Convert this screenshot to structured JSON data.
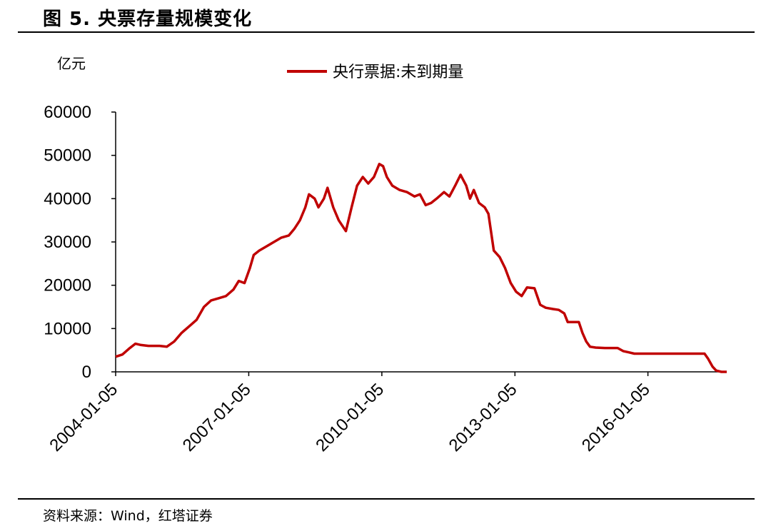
{
  "figure": {
    "title": "图 5. 央票存量规模变化",
    "source": "资料来源：Wind，红塔证券"
  },
  "chart_data": {
    "type": "line",
    "title": "",
    "ylabel": "亿元",
    "xlabel": "",
    "ylim": [
      0,
      60000
    ],
    "y_ticks": [
      0,
      10000,
      20000,
      30000,
      40000,
      50000,
      60000
    ],
    "y_tick_labels": [
      "0",
      "10000",
      "20000",
      "30000",
      "40000",
      "50000",
      "60000"
    ],
    "x_ticks": [
      "2004-01-05",
      "2007-01-05",
      "2010-01-05",
      "2013-01-05",
      "2016-01-05"
    ],
    "xlim": [
      "2004-01-05",
      "2017-10-15"
    ],
    "legend": "top-center",
    "grid": false,
    "series": [
      {
        "name": "央行票据:未到期量",
        "color": "#c00000",
        "points": [
          [
            "2004-01-05",
            3500
          ],
          [
            "2004-03-01",
            4000
          ],
          [
            "2004-05-01",
            5500
          ],
          [
            "2004-06-15",
            6500
          ],
          [
            "2004-08-01",
            6200
          ],
          [
            "2004-10-01",
            6000
          ],
          [
            "2005-01-01",
            6000
          ],
          [
            "2005-03-01",
            5800
          ],
          [
            "2005-05-01",
            7000
          ],
          [
            "2005-07-01",
            9000
          ],
          [
            "2005-09-01",
            10500
          ],
          [
            "2005-11-01",
            12000
          ],
          [
            "2006-01-01",
            15000
          ],
          [
            "2006-03-01",
            16500
          ],
          [
            "2006-05-01",
            17000
          ],
          [
            "2006-07-01",
            17500
          ],
          [
            "2006-09-01",
            19000
          ],
          [
            "2006-10-15",
            21000
          ],
          [
            "2006-12-01",
            20500
          ],
          [
            "2007-01-15",
            24000
          ],
          [
            "2007-02-15",
            27000
          ],
          [
            "2007-04-01",
            28000
          ],
          [
            "2007-06-01",
            29000
          ],
          [
            "2007-08-01",
            30000
          ],
          [
            "2007-10-01",
            31000
          ],
          [
            "2007-12-01",
            31500
          ],
          [
            "2008-01-15",
            33000
          ],
          [
            "2008-03-01",
            35000
          ],
          [
            "2008-04-15",
            38000
          ],
          [
            "2008-05-15",
            41000
          ],
          [
            "2008-07-01",
            40000
          ],
          [
            "2008-08-01",
            38000
          ],
          [
            "2008-09-15",
            40000
          ],
          [
            "2008-10-15",
            42500
          ],
          [
            "2008-12-01",
            38000
          ],
          [
            "2009-01-15",
            35000
          ],
          [
            "2009-03-15",
            32500
          ],
          [
            "2009-05-01",
            38000
          ],
          [
            "2009-06-15",
            43000
          ],
          [
            "2009-08-01",
            45000
          ],
          [
            "2009-09-15",
            43500
          ],
          [
            "2009-11-01",
            45000
          ],
          [
            "2009-12-15",
            48000
          ],
          [
            "2010-01-15",
            47500
          ],
          [
            "2010-02-15",
            45000
          ],
          [
            "2010-04-01",
            43000
          ],
          [
            "2010-06-01",
            42000
          ],
          [
            "2010-08-01",
            41500
          ],
          [
            "2010-10-01",
            40500
          ],
          [
            "2010-11-15",
            41000
          ],
          [
            "2011-01-01",
            38500
          ],
          [
            "2011-02-15",
            39000
          ],
          [
            "2011-04-01",
            40000
          ],
          [
            "2011-06-01",
            41500
          ],
          [
            "2011-07-15",
            40500
          ],
          [
            "2011-09-01",
            43000
          ],
          [
            "2011-10-15",
            45500
          ],
          [
            "2011-12-01",
            43000
          ],
          [
            "2012-01-01",
            40000
          ],
          [
            "2012-02-01",
            42000
          ],
          [
            "2012-03-15",
            39000
          ],
          [
            "2012-05-01",
            38000
          ],
          [
            "2012-06-01",
            36500
          ],
          [
            "2012-07-15",
            28000
          ],
          [
            "2012-09-01",
            26500
          ],
          [
            "2012-10-15",
            24000
          ],
          [
            "2012-12-01",
            20500
          ],
          [
            "2013-01-15",
            18500
          ],
          [
            "2013-03-01",
            17500
          ],
          [
            "2013-04-15",
            19500
          ],
          [
            "2013-06-15",
            19300
          ],
          [
            "2013-08-01",
            15500
          ],
          [
            "2013-09-15",
            14800
          ],
          [
            "2013-11-15",
            14500
          ],
          [
            "2014-01-01",
            14300
          ],
          [
            "2014-02-15",
            13500
          ],
          [
            "2014-03-15",
            11500
          ],
          [
            "2014-05-01",
            11500
          ],
          [
            "2014-06-15",
            11500
          ],
          [
            "2014-07-15",
            9000
          ],
          [
            "2014-08-15",
            7000
          ],
          [
            "2014-09-15",
            5800
          ],
          [
            "2014-11-01",
            5600
          ],
          [
            "2015-01-15",
            5500
          ],
          [
            "2015-03-15",
            5500
          ],
          [
            "2015-05-01",
            5500
          ],
          [
            "2015-06-15",
            4800
          ],
          [
            "2015-08-01",
            4500
          ],
          [
            "2015-09-15",
            4200
          ],
          [
            "2016-01-01",
            4200
          ],
          [
            "2016-07-01",
            4200
          ],
          [
            "2017-01-01",
            4200
          ],
          [
            "2017-04-15",
            4200
          ],
          [
            "2017-05-15",
            3000
          ],
          [
            "2017-06-20",
            1200
          ],
          [
            "2017-07-20",
            300
          ],
          [
            "2017-09-01",
            0
          ],
          [
            "2017-10-15",
            0
          ]
        ]
      }
    ]
  }
}
